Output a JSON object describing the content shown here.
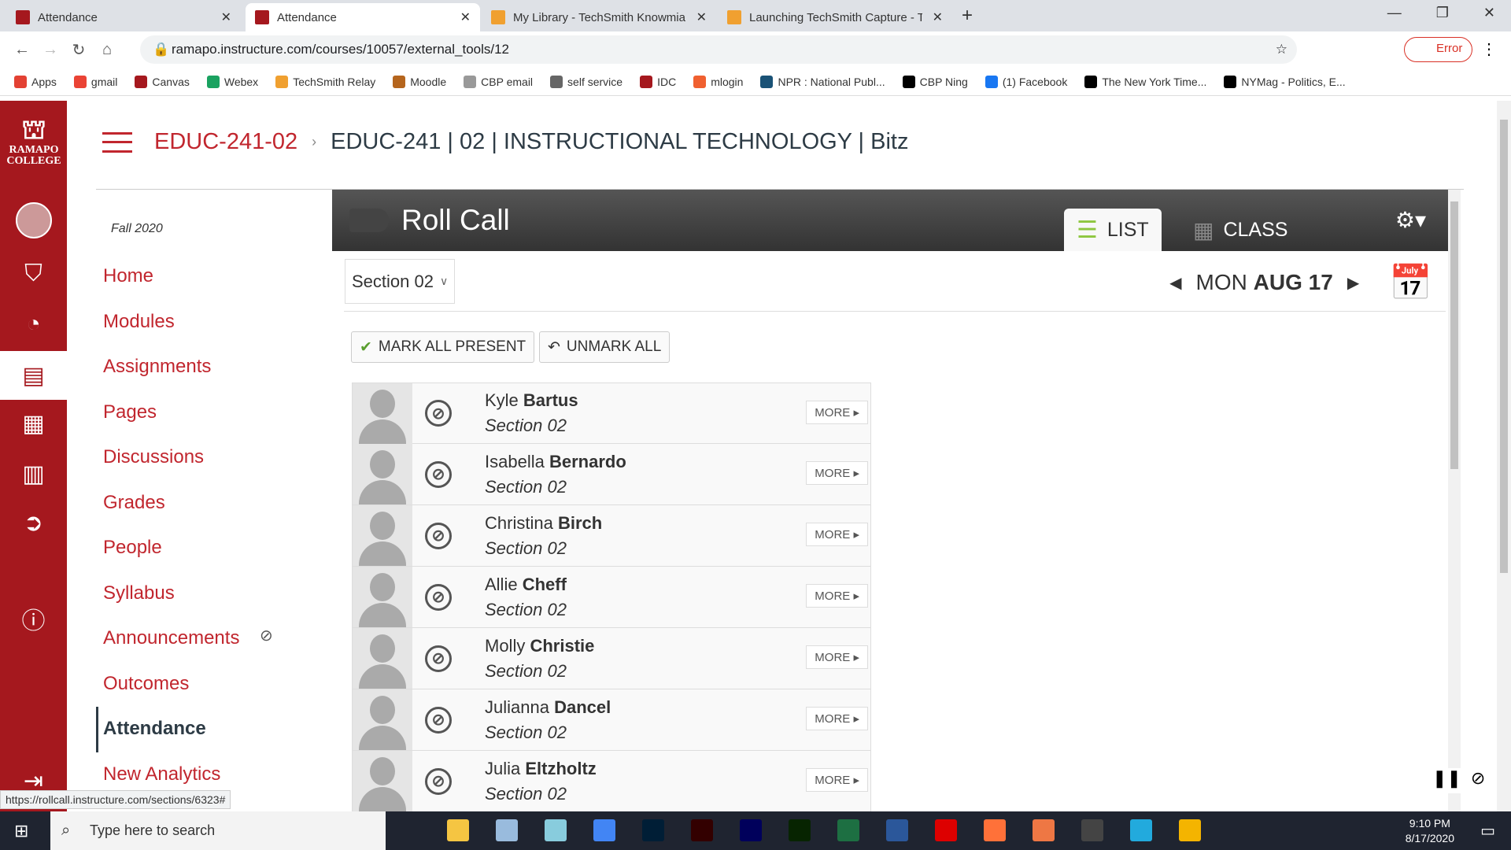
{
  "browser": {
    "tabs": [
      {
        "label": "Attendance",
        "icon": "canvas-icon"
      },
      {
        "label": "Attendance",
        "icon": "canvas-icon",
        "active": true
      },
      {
        "label": "My Library - TechSmith Knowmia",
        "icon": "techsmith-icon"
      },
      {
        "label": "Launching TechSmith Capture - T",
        "icon": "techsmith-icon"
      }
    ],
    "url": "ramapo.instructure.com/courses/10057/external_tools/12",
    "profile_label": "Error",
    "bookmarks": [
      "Apps",
      "gmail",
      "Canvas",
      "Webex",
      "TechSmith Relay",
      "Moodle",
      "CBP email",
      "self service",
      "IDC",
      "mlogin",
      "NPR : National Publ...",
      "CBP Ning",
      "(1) Facebook",
      "The New York Time...",
      "NYMag - Politics, E..."
    ]
  },
  "rail": {
    "logo": "RAMAPO COLLEGE"
  },
  "breadcrumb": {
    "course_code": "EDUC-241-02",
    "page": "EDUC-241 | 02 | INSTRUCTIONAL TECHNOLOGY | Bitz"
  },
  "course_nav": {
    "term": "Fall 2020",
    "items": [
      "Home",
      "Modules",
      "Assignments",
      "Pages",
      "Discussions",
      "Grades",
      "People",
      "Syllabus",
      "Announcements",
      "Outcomes",
      "Attendance",
      "New Analytics"
    ],
    "active": "Attendance"
  },
  "rollcall": {
    "title": "Roll Call",
    "list_label": "LIST",
    "class_label": "CLASS",
    "section": "Section 02",
    "date_day": "MON",
    "date": "AUG 17",
    "mark_all": "MARK ALL PRESENT",
    "unmark_all": "UNMARK ALL",
    "more_label": "MORE ▸",
    "students": [
      {
        "first": "Kyle",
        "last": "Bartus",
        "section": "Section 02"
      },
      {
        "first": "Isabella",
        "last": "Bernardo",
        "section": "Section 02"
      },
      {
        "first": "Christina",
        "last": "Birch",
        "section": "Section 02"
      },
      {
        "first": "Allie",
        "last": "Cheff",
        "section": "Section 02"
      },
      {
        "first": "Molly",
        "last": "Christie",
        "section": "Section 02"
      },
      {
        "first": "Julianna",
        "last": "Dancel",
        "section": "Section 02"
      },
      {
        "first": "Julia",
        "last": "Eltzholtz",
        "section": "Section 02"
      }
    ]
  },
  "status_url": "https://rollcall.instructure.com/sections/6323#",
  "taskbar": {
    "search_placeholder": "Type here to search",
    "time": "9:10 PM",
    "date": "8/17/2020"
  }
}
